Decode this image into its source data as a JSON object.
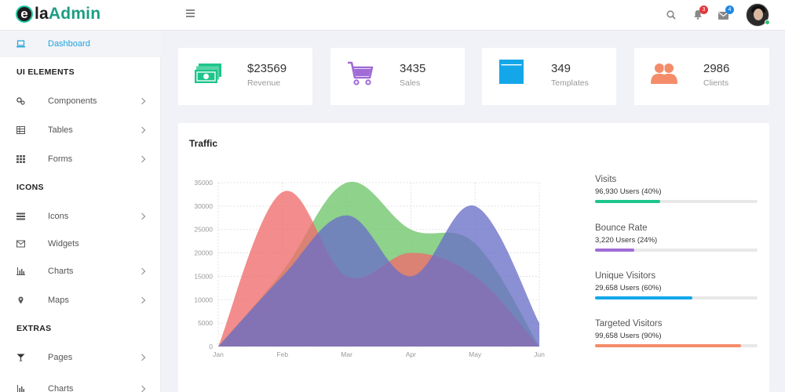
{
  "brand": {
    "letter": "e",
    "text_a": "la",
    "text_b": "Admin"
  },
  "header": {
    "notifications": {
      "icon": "bell-icon",
      "count": "3",
      "color": "#e4393c"
    },
    "messages": {
      "icon": "envelope-icon",
      "count": "4",
      "color": "#1e88e5"
    },
    "search": {
      "icon": "search-icon"
    }
  },
  "sidebar": {
    "dashboard": "Dashboard",
    "sections": {
      "ui": "UI ELEMENTS",
      "icons": "ICONS",
      "extras": "EXTRAS"
    },
    "items": {
      "components": "Components",
      "tables": "Tables",
      "forms": "Forms",
      "icons": "Icons",
      "widgets": "Widgets",
      "charts": "Charts",
      "maps": "Maps",
      "pages": "Pages",
      "charts2": "Charts"
    }
  },
  "stats": [
    {
      "value": "$23569",
      "label": "Revenue",
      "icon": "money-icon",
      "color": "#1dc58a"
    },
    {
      "value": "3435",
      "label": "Sales",
      "icon": "cart-icon",
      "color": "#a06bd6"
    },
    {
      "value": "349",
      "label": "Templates",
      "icon": "browser-icon",
      "color": "#13a7e9"
    },
    {
      "value": "2986",
      "label": "Clients",
      "icon": "users-icon",
      "color": "#f48c6a"
    }
  ],
  "traffic": {
    "title": "Traffic",
    "progress": [
      {
        "name": "Visits",
        "value": "96,930 Users (40%)",
        "pct": 40,
        "color": "#1dc58a"
      },
      {
        "name": "Bounce Rate",
        "value": "3,220 Users (24%)",
        "pct": 24,
        "color": "#a06bd6"
      },
      {
        "name": "Unique Visitors",
        "value": "29,658 Users (60%)",
        "pct": 60,
        "color": "#13a7e9"
      },
      {
        "name": "Targeted Visitors",
        "value": "99,658 Users (90%)",
        "pct": 90,
        "color": "#f48c6a"
      }
    ]
  },
  "chart_data": {
    "type": "area",
    "x": [
      "Jan",
      "Feb",
      "Mar",
      "Apr",
      "May",
      "Jun"
    ],
    "ylim": [
      0,
      35000
    ],
    "yticks": [
      0,
      5000,
      10000,
      15000,
      20000,
      25000,
      30000,
      35000
    ],
    "grid": true,
    "series": [
      {
        "values": [
          0,
          16000,
          35000,
          25000,
          22000,
          0
        ],
        "color": "#6fc56b"
      },
      {
        "values": [
          0,
          33000,
          15000,
          20000,
          15000,
          0
        ],
        "color": "#f06b6b"
      },
      {
        "values": [
          0,
          15000,
          28000,
          15000,
          30000,
          5000
        ],
        "color": "#6a6fc6"
      }
    ]
  }
}
